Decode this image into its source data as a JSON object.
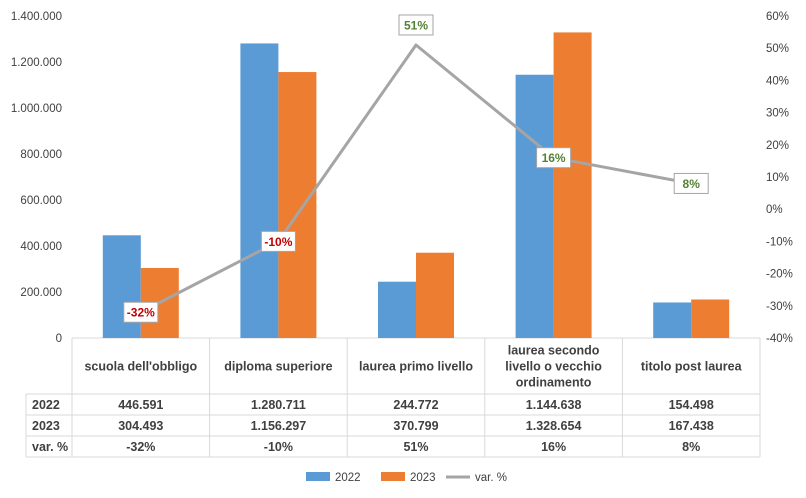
{
  "chart_data": {
    "type": "bar",
    "categories": [
      [
        "scuola dell'obbligo"
      ],
      [
        "diploma superiore"
      ],
      [
        "laurea primo livello"
      ],
      [
        "laurea secondo",
        "livello o vecchio",
        "ordinamento"
      ],
      [
        "titolo post laurea"
      ]
    ],
    "series": [
      {
        "name": "2022",
        "color": "#5B9BD5",
        "values": [
          446591,
          1280711,
          244772,
          1144638,
          154498
        ],
        "table_values": [
          "446.591",
          "1.280.711",
          "244.772",
          "1.144.638",
          "154.498"
        ]
      },
      {
        "name": "2023",
        "color": "#ED7D31",
        "values": [
          304493,
          1156297,
          370799,
          1328654,
          167438
        ],
        "table_values": [
          "304.493",
          "1.156.297",
          "370.799",
          "1.328.654",
          "167.438"
        ]
      },
      {
        "name": "var. %",
        "type": "line",
        "axis": "right",
        "color": "#A5A5A5",
        "values": [
          -32,
          -10,
          51,
          16,
          8
        ],
        "table_values": [
          "-32%",
          "-10%",
          "51%",
          "16%",
          "8%"
        ],
        "data_labels": [
          "-32%",
          "-10%",
          "51%",
          "16%",
          "8%"
        ]
      }
    ],
    "y_left": {
      "min": 0,
      "max": 1400000,
      "step": 200000,
      "tick_labels": [
        "0",
        "200.000",
        "400.000",
        "600.000",
        "800.000",
        "1.000.000",
        "1.200.000",
        "1.400.000"
      ]
    },
    "y_right": {
      "min": -40,
      "max": 60,
      "step": 10,
      "tick_labels": [
        "-40%",
        "-30%",
        "-20%",
        "-10%",
        "0%",
        "10%",
        "20%",
        "30%",
        "40%",
        "50%",
        "60%"
      ]
    },
    "label_colors": {
      "negative": "#C00000",
      "positive": "#548235"
    },
    "legend_position": "bottom",
    "grid": false,
    "data_table": true
  }
}
